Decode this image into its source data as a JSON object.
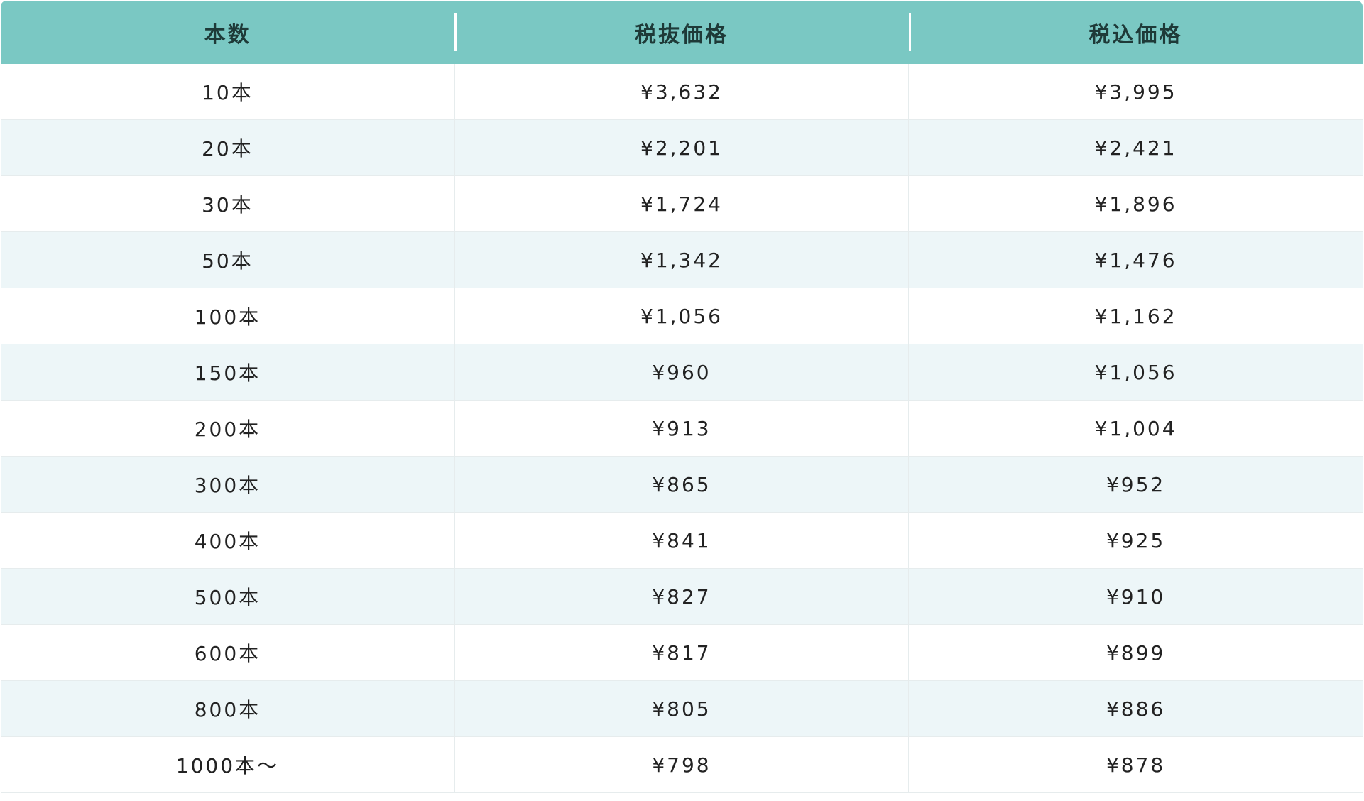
{
  "table": {
    "header": [
      "本数",
      "税抜価格",
      "税込価格"
    ],
    "rows": [
      [
        "10本",
        "¥3,632",
        "¥3,995"
      ],
      [
        "20本",
        "¥2,201",
        "¥2,421"
      ],
      [
        "30本",
        "¥1,724",
        "¥1,896"
      ],
      [
        "50本",
        "¥1,342",
        "¥1,476"
      ],
      [
        "100本",
        "¥1,056",
        "¥1,162"
      ],
      [
        "150本",
        "¥960",
        "¥1,056"
      ],
      [
        "200本",
        "¥913",
        "¥1,004"
      ],
      [
        "300本",
        "¥865",
        "¥952"
      ],
      [
        "400本",
        "¥841",
        "¥925"
      ],
      [
        "500本",
        "¥827",
        "¥910"
      ],
      [
        "600本",
        "¥817",
        "¥899"
      ],
      [
        "800本",
        "¥805",
        "¥886"
      ],
      [
        "1000本〜",
        "¥798",
        "¥878"
      ]
    ]
  }
}
